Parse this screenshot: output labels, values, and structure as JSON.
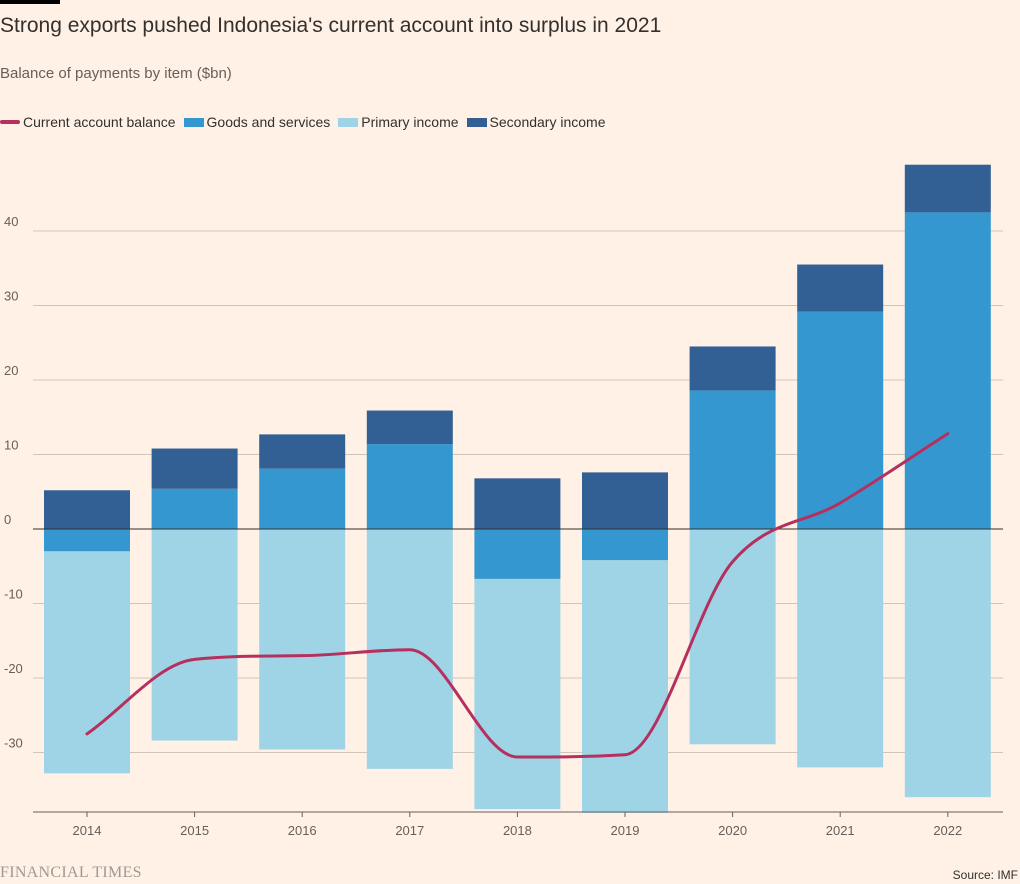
{
  "header": {
    "title": "Strong exports pushed Indonesia's current account into surplus in 2021",
    "subtitle": "Balance of payments by item ($bn)"
  },
  "legend": [
    {
      "label": "Current account balance",
      "color": "#b5305e",
      "kind": "line"
    },
    {
      "label": "Goods and services",
      "color": "#3597d0",
      "kind": "bar"
    },
    {
      "label": "Primary income",
      "color": "#9fd4e6",
      "kind": "bar"
    },
    {
      "label": "Secondary income",
      "color": "#325f94",
      "kind": "bar"
    }
  ],
  "footer": {
    "brand": "FINANCIAL TIMES",
    "source": "Source: IMF"
  },
  "chart_data": {
    "type": "bar",
    "stacked": true,
    "categories": [
      "2014",
      "2015",
      "2016",
      "2017",
      "2018",
      "2019",
      "2020",
      "2021",
      "2022"
    ],
    "series": [
      {
        "name": "Goods and services",
        "color": "#3597d0",
        "values": [
          -3.0,
          5.4,
          8.1,
          11.4,
          -6.7,
          -4.2,
          18.6,
          29.2,
          42.5
        ]
      },
      {
        "name": "Primary income",
        "color": "#9fd4e6",
        "values": [
          -29.8,
          -28.4,
          -29.6,
          -32.2,
          -30.9,
          -33.9,
          -28.9,
          -32.0,
          -36.0
        ]
      },
      {
        "name": "Secondary income",
        "color": "#325f94",
        "values": [
          5.2,
          5.4,
          4.6,
          4.5,
          6.8,
          7.6,
          5.9,
          6.3,
          6.4
        ]
      },
      {
        "name": "Current account balance",
        "color": "#b5305e",
        "kind": "line",
        "values": [
          -27.5,
          -17.5,
          -17.0,
          -16.2,
          -30.6,
          -30.3,
          -4.4,
          3.5,
          12.8
        ]
      }
    ],
    "yticks": [
      -30,
      -20,
      -10,
      0,
      10,
      20,
      30,
      40
    ],
    "ylim": [
      -38,
      50
    ],
    "grid": true,
    "legend_position": "top-left"
  }
}
